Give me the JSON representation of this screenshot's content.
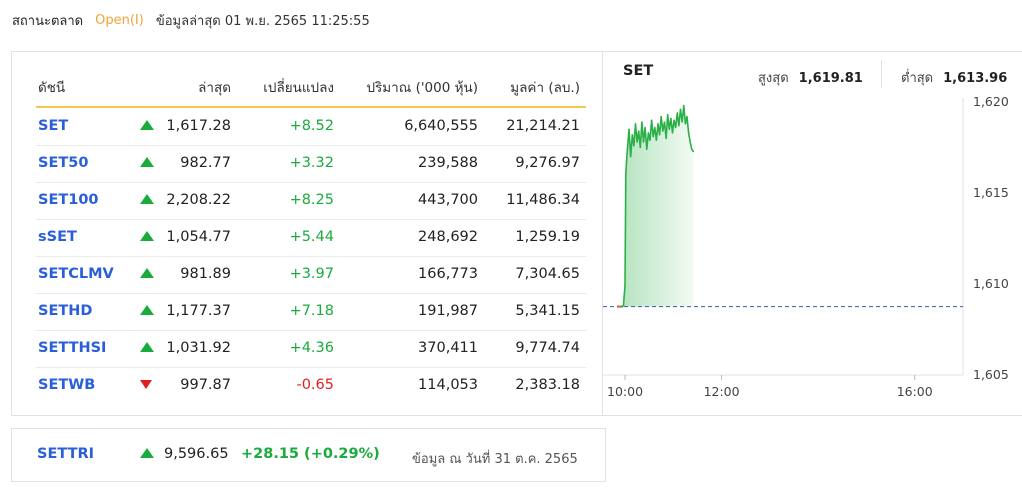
{
  "status": {
    "label": "สถานะตลาด",
    "market_state": "Open(I)",
    "updated": "ข้อมูลล่าสุด 01 พ.ย. 2565 11:25:55"
  },
  "table": {
    "headers": {
      "index": "ดัชนี",
      "last": "ล่าสุด",
      "change": "เปลี่ยนแปลง",
      "volume": "ปริมาณ ('000 หุ้น)",
      "value": "มูลค่า (ลบ.)"
    },
    "rows": [
      {
        "name": "SET",
        "dir": "up",
        "last": "1,617.28",
        "change": "+8.52",
        "volume": "6,640,555",
        "value": "21,214.21"
      },
      {
        "name": "SET50",
        "dir": "up",
        "last": "982.77",
        "change": "+3.32",
        "volume": "239,588",
        "value": "9,276.97"
      },
      {
        "name": "SET100",
        "dir": "up",
        "last": "2,208.22",
        "change": "+8.25",
        "volume": "443,700",
        "value": "11,486.34"
      },
      {
        "name": "sSET",
        "dir": "up",
        "last": "1,054.77",
        "change": "+5.44",
        "volume": "248,692",
        "value": "1,259.19"
      },
      {
        "name": "SETCLMV",
        "dir": "up",
        "last": "981.89",
        "change": "+3.97",
        "volume": "166,773",
        "value": "7,304.65"
      },
      {
        "name": "SETHD",
        "dir": "up",
        "last": "1,177.37",
        "change": "+7.18",
        "volume": "191,987",
        "value": "5,341.15"
      },
      {
        "name": "SETTHSI",
        "dir": "up",
        "last": "1,031.92",
        "change": "+4.36",
        "volume": "370,411",
        "value": "9,774.74"
      },
      {
        "name": "SETWB",
        "dir": "down",
        "last": "997.87",
        "change": "-0.65",
        "volume": "114,053",
        "value": "2,383.18"
      }
    ]
  },
  "chart": {
    "title": "SET",
    "high_label": "สูงสุด",
    "high_value": "1,619.81",
    "low_label": "ต่ำสุด",
    "low_value": "1,613.96"
  },
  "chart_data": {
    "type": "area",
    "title": "SET",
    "x_ticks": [
      "10:00",
      "12:00",
      "16:00"
    ],
    "y_ticks": [
      "1,620",
      "1,615",
      "1,610",
      "1,605"
    ],
    "ylim": [
      1605,
      1620
    ],
    "baseline": 1608.76,
    "colors": {
      "line": "#2bb048",
      "fill": "#2bb048",
      "baseline": "#3b5aa8",
      "prior": "#e05050"
    },
    "series": [
      {
        "x": [
          "09:55",
          "09:58",
          "10:00",
          "10:01",
          "10:02",
          "10:03",
          "10:05",
          "10:07",
          "10:09",
          "10:11",
          "10:13",
          "10:15",
          "10:17",
          "10:19",
          "10:21",
          "10:23",
          "10:25",
          "10:27",
          "10:29",
          "10:31",
          "10:33",
          "10:35",
          "10:37",
          "10:39",
          "10:41",
          "10:43",
          "10:45",
          "10:47",
          "10:49",
          "10:51",
          "10:53",
          "10:55",
          "10:57",
          "10:59",
          "11:01",
          "11:03",
          "11:05",
          "11:07",
          "11:09",
          "11:11",
          "11:13",
          "11:15",
          "11:17",
          "11:19",
          "11:21",
          "11:23",
          "11:25"
        ],
        "values": [
          1608.76,
          1608.8,
          1609.9,
          1616.0,
          1616.8,
          1617.4,
          1618.5,
          1617.0,
          1618.2,
          1617.6,
          1618.8,
          1617.8,
          1618.4,
          1617.5,
          1618.9,
          1617.8,
          1618.6,
          1617.4,
          1618.3,
          1617.9,
          1619.0,
          1618.1,
          1618.6,
          1617.9,
          1618.8,
          1618.2,
          1619.2,
          1618.4,
          1618.9,
          1618.0,
          1619.3,
          1618.5,
          1619.1,
          1618.3,
          1619.0,
          1618.6,
          1619.4,
          1618.7,
          1619.6,
          1618.9,
          1619.8,
          1618.8,
          1619.2,
          1618.3,
          1617.8,
          1617.4,
          1617.28
        ]
      }
    ]
  },
  "settri": {
    "name": "SETTRI",
    "dir": "up",
    "last": "9,596.65",
    "change": "+28.15 (+0.29%)",
    "note": "ข้อมูล ณ วันที่ 31 ต.ค. 2565"
  }
}
